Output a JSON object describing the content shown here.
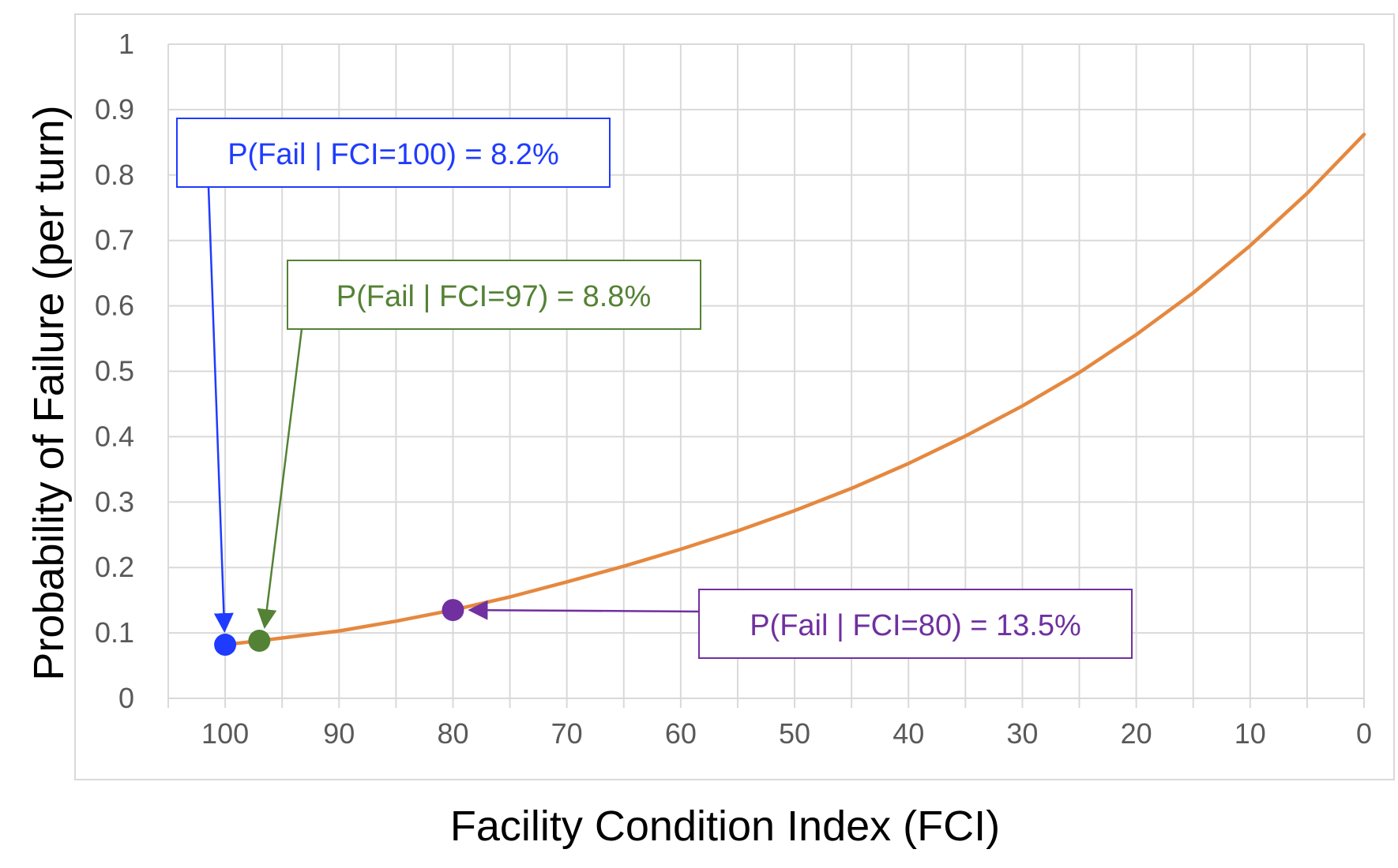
{
  "chart_data": {
    "type": "line",
    "title": "",
    "xlabel": "Facility Condition Index (FCI)",
    "ylabel": "Probability of Failure (per turn)",
    "xlim": [
      105,
      0
    ],
    "ylim": [
      0,
      1
    ],
    "x_reversed": true,
    "grid": true,
    "x_ticks": [
      100,
      90,
      80,
      70,
      60,
      50,
      40,
      30,
      20,
      10,
      0
    ],
    "y_ticks": [
      0,
      0.1,
      0.2,
      0.3,
      0.4,
      0.5,
      0.6,
      0.7,
      0.8,
      0.9,
      1
    ],
    "x_tick_labels": [
      "100",
      "90",
      "80",
      "70",
      "60",
      "50",
      "40",
      "30",
      "20",
      "10",
      "0"
    ],
    "y_tick_labels": [
      "0",
      "0.1",
      "0.2",
      "0.3",
      "0.4",
      "0.5",
      "0.6",
      "0.7",
      "0.8",
      "0.9",
      "1"
    ],
    "series": [
      {
        "color": "#E5883F",
        "x": [
          100,
          97,
          90,
          85,
          80,
          75,
          70,
          65,
          60,
          55,
          50,
          45,
          40,
          35,
          30,
          25,
          20,
          15,
          10,
          5,
          0
        ],
        "y": [
          0.082,
          0.088,
          0.103,
          0.118,
          0.135,
          0.155,
          0.178,
          0.202,
          0.228,
          0.256,
          0.287,
          0.321,
          0.359,
          0.401,
          0.447,
          0.498,
          0.556,
          0.62,
          0.692,
          0.772,
          0.862
        ]
      }
    ],
    "highlight_points": [
      {
        "x": 100,
        "y": 0.082,
        "color": "#1F3BFF"
      },
      {
        "x": 97,
        "y": 0.088,
        "color": "#548235"
      },
      {
        "x": 80,
        "y": 0.135,
        "color": "#7030A0"
      }
    ],
    "annotations": [
      {
        "text": "P(Fail | FCI=100) = 8.2%",
        "color": "#1F3BFF"
      },
      {
        "text": "P(Fail | FCI=97) = 8.8%",
        "color": "#548235"
      },
      {
        "text": "P(Fail | FCI=80) = 13.5%",
        "color": "#7030A0"
      }
    ],
    "colors": {
      "line": "#E5883F",
      "grid": "#D9D9D9",
      "frame": "#D9D9D9",
      "tick_text": "#595959"
    }
  }
}
